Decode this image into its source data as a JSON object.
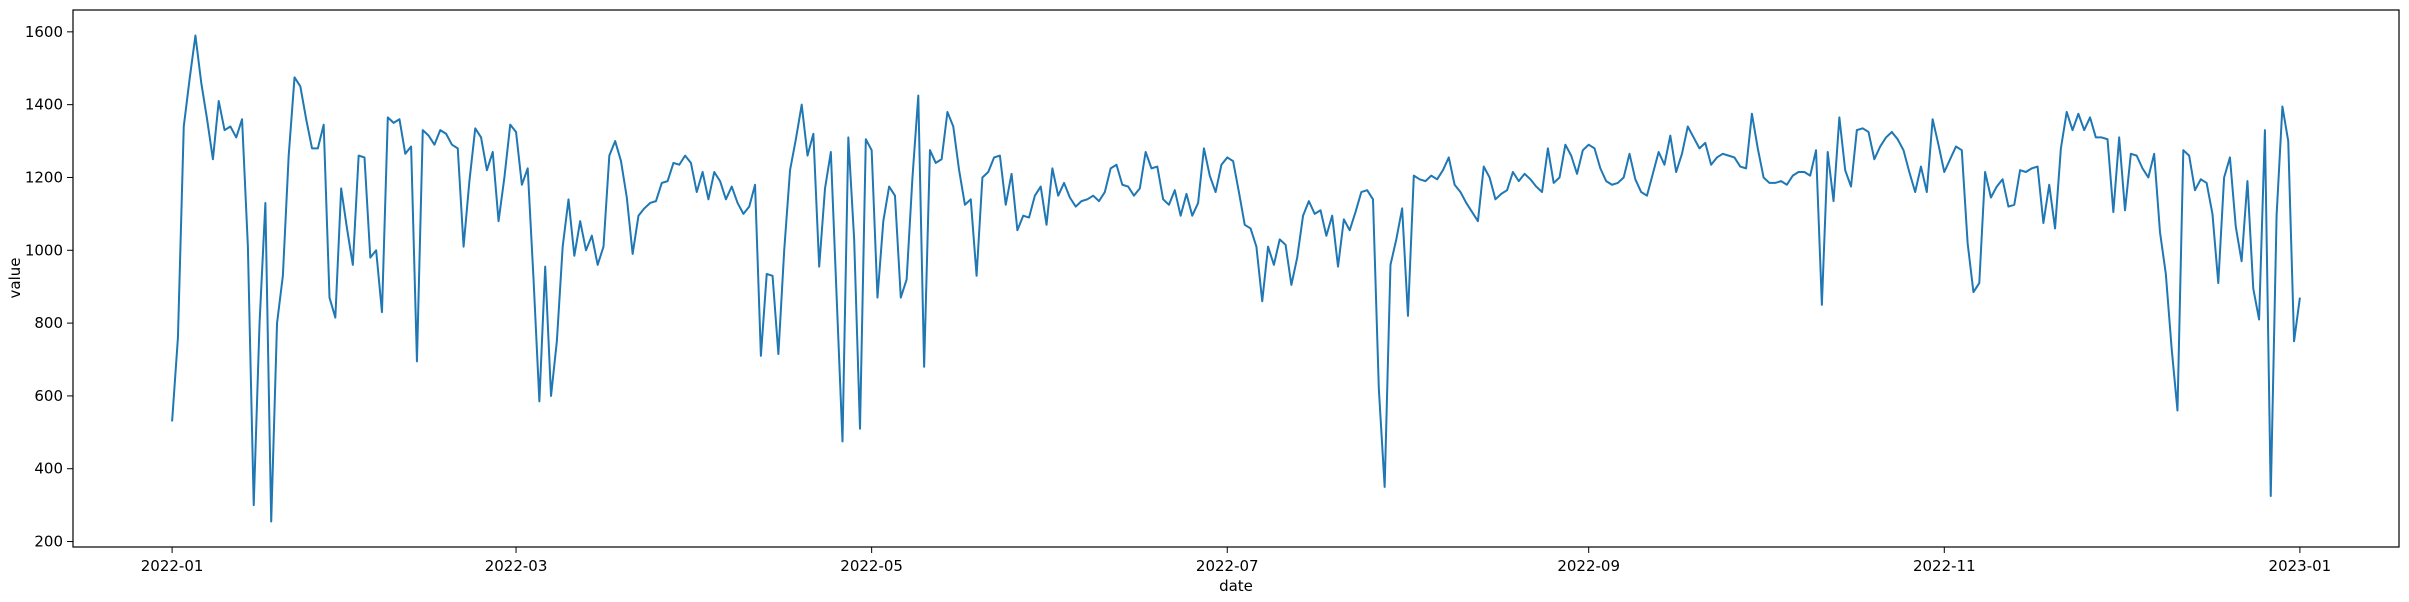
{
  "chart_data": {
    "type": "line",
    "title": "",
    "xlabel": "date",
    "ylabel": "value",
    "x_start": "2022-01-01",
    "x_end": "2022-12-31",
    "xlim": [
      "2021-12-15",
      "2023-01-18"
    ],
    "ylim": [
      185,
      1660
    ],
    "grid": false,
    "legend": "none",
    "line_color": "#1f77b4",
    "xticks": [
      {
        "date": "2022-01-01",
        "label": "2022-01"
      },
      {
        "date": "2022-03-01",
        "label": "2022-03"
      },
      {
        "date": "2022-05-01",
        "label": "2022-05"
      },
      {
        "date": "2022-07-01",
        "label": "2022-07"
      },
      {
        "date": "2022-09-01",
        "label": "2022-09"
      },
      {
        "date": "2022-11-01",
        "label": "2022-11"
      },
      {
        "date": "2023-01-01",
        "label": "2023-01"
      }
    ],
    "yticks": [
      200,
      400,
      600,
      800,
      1000,
      1200,
      1400,
      1600
    ],
    "series": [
      {
        "values": [
          530,
          760,
          1340,
          1470,
          1590,
          1460,
          1360,
          1250,
          1410,
          1330,
          1340,
          1310,
          1360,
          1010,
          300,
          800,
          1130,
          255,
          800,
          930,
          1260,
          1475,
          1450,
          1360,
          1280,
          1280,
          1345,
          870,
          815,
          1170,
          1060,
          960,
          1260,
          1255,
          980,
          1000,
          830,
          1365,
          1350,
          1360,
          1265,
          1285,
          695,
          1330,
          1315,
          1290,
          1330,
          1320,
          1290,
          1280,
          1010,
          1190,
          1335,
          1310,
          1220,
          1270,
          1080,
          1200,
          1345,
          1325,
          1180,
          1225,
          920,
          585,
          955,
          600,
          750,
          1010,
          1140,
          985,
          1080,
          1000,
          1040,
          960,
          1010,
          1260,
          1300,
          1245,
          1145,
          990,
          1095,
          1115,
          1130,
          1135,
          1185,
          1190,
          1240,
          1235,
          1260,
          1240,
          1160,
          1215,
          1140,
          1215,
          1190,
          1140,
          1175,
          1130,
          1100,
          1120,
          1180,
          710,
          935,
          930,
          715,
          1000,
          1220,
          1305,
          1400,
          1260,
          1320,
          955,
          1170,
          1270,
          870,
          475,
          1310,
          1030,
          510,
          1305,
          1275,
          870,
          1080,
          1175,
          1150,
          870,
          920,
          1200,
          1425,
          680,
          1275,
          1240,
          1250,
          1380,
          1340,
          1220,
          1125,
          1140,
          930,
          1200,
          1215,
          1255,
          1260,
          1125,
          1210,
          1055,
          1095,
          1090,
          1150,
          1175,
          1070,
          1225,
          1150,
          1185,
          1145,
          1120,
          1135,
          1140,
          1150,
          1135,
          1160,
          1225,
          1235,
          1180,
          1175,
          1150,
          1170,
          1270,
          1225,
          1230,
          1140,
          1125,
          1165,
          1095,
          1155,
          1095,
          1130,
          1280,
          1205,
          1160,
          1235,
          1255,
          1245,
          1160,
          1070,
          1060,
          1010,
          860,
          1010,
          960,
          1030,
          1015,
          905,
          980,
          1095,
          1135,
          1100,
          1110,
          1040,
          1095,
          955,
          1085,
          1055,
          1105,
          1160,
          1165,
          1140,
          620,
          350,
          960,
          1030,
          1115,
          820,
          1205,
          1195,
          1190,
          1205,
          1195,
          1220,
          1255,
          1180,
          1160,
          1130,
          1105,
          1080,
          1230,
          1200,
          1140,
          1155,
          1165,
          1215,
          1190,
          1210,
          1195,
          1175,
          1160,
          1280,
          1185,
          1200,
          1290,
          1260,
          1210,
          1275,
          1290,
          1280,
          1225,
          1190,
          1180,
          1185,
          1200,
          1265,
          1195,
          1160,
          1150,
          1210,
          1270,
          1235,
          1315,
          1215,
          1265,
          1340,
          1310,
          1280,
          1295,
          1235,
          1255,
          1265,
          1260,
          1255,
          1230,
          1225,
          1375,
          1280,
          1200,
          1185,
          1185,
          1190,
          1180,
          1205,
          1215,
          1215,
          1205,
          1275,
          850,
          1270,
          1135,
          1365,
          1220,
          1175,
          1330,
          1335,
          1325,
          1250,
          1285,
          1310,
          1325,
          1305,
          1275,
          1215,
          1160,
          1230,
          1160,
          1360,
          1290,
          1215,
          1250,
          1285,
          1275,
          1020,
          885,
          910,
          1215,
          1145,
          1175,
          1195,
          1120,
          1125,
          1220,
          1215,
          1225,
          1230,
          1075,
          1180,
          1060,
          1280,
          1380,
          1330,
          1375,
          1330,
          1365,
          1310,
          1310,
          1305,
          1105,
          1310,
          1110,
          1265,
          1260,
          1225,
          1200,
          1265,
          1050,
          935,
          730,
          560,
          1275,
          1260,
          1165,
          1195,
          1185,
          1100,
          910,
          1200,
          1255,
          1065,
          970,
          1190,
          895,
          810,
          1330,
          325,
          1095,
          1395,
          1300,
          750,
          870
        ]
      }
    ]
  }
}
